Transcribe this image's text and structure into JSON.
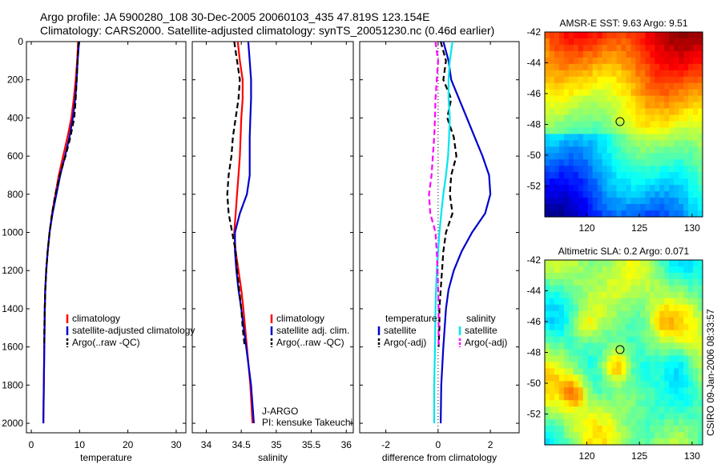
{
  "header": {
    "line1": "Argo profile: JA 5900280_108 30-Dec-2005 20060103_435 47.819S 123.154E",
    "line2": "Climatology: CARS2000. Satellite-adjusted climatology: synTS_20051230.nc (0.46d earlier)"
  },
  "colors": {
    "climatology": "#ff0000",
    "satellite_adjusted": "#0000cc",
    "argo": "#000000",
    "salinity_satellite": "#00e5ee",
    "salinity_argo": "#ff00ff"
  },
  "credit": "CSIRO 09-Jan-2006 08:33:57",
  "float_info": [
    "J-ARGO",
    "PI: kensuke Takeuchi"
  ],
  "chart_data": [
    {
      "type": "line",
      "xlabel": "temperature",
      "ylabel": "",
      "xlim": [
        -1,
        32
      ],
      "ylim": [
        2050,
        0
      ],
      "xticks": [
        "0",
        "10",
        "20",
        "30"
      ],
      "yticks": [
        "0",
        "200",
        "400",
        "600",
        "800",
        "1000",
        "1200",
        "1400",
        "1600",
        "1800",
        "2000"
      ],
      "legend": [
        "climatology",
        "satellite-adjusted climatology",
        "Argo(..raw -QC)"
      ],
      "series": [
        {
          "name": "climatology",
          "color": "#ff0000",
          "style": "solid",
          "depth": [
            0,
            100,
            200,
            300,
            400,
            500,
            600,
            700,
            800,
            900,
            1000,
            1100,
            1200,
            1300,
            1400,
            1600,
            1800,
            2000
          ],
          "values": [
            9.7,
            9.5,
            9.2,
            8.8,
            8.3,
            7.5,
            6.6,
            5.7,
            5.0,
            4.3,
            3.8,
            3.4,
            3.1,
            2.9,
            2.8,
            2.7,
            2.6,
            2.5
          ]
        },
        {
          "name": "satellite-adjusted climatology",
          "color": "#0000cc",
          "style": "solid",
          "depth": [
            0,
            100,
            200,
            300,
            400,
            500,
            600,
            700,
            800,
            900,
            1000,
            1100,
            1200,
            1300,
            1400,
            1600,
            1800,
            2000
          ],
          "values": [
            9.9,
            9.6,
            9.4,
            9.1,
            8.6,
            7.9,
            7.0,
            6.0,
            5.2,
            4.4,
            3.8,
            3.4,
            3.1,
            2.9,
            2.8,
            2.7,
            2.6,
            2.5
          ]
        },
        {
          "name": "Argo(..raw -QC)",
          "color": "#000000",
          "style": "dashed",
          "depth": [
            0,
            100,
            200,
            300,
            400,
            500,
            600,
            700,
            800,
            900,
            1000,
            1100,
            1200,
            1300,
            1400,
            1500,
            1600
          ],
          "values": [
            9.8,
            9.6,
            9.4,
            9.2,
            8.9,
            8.1,
            7.1,
            5.9,
            5.0,
            4.3,
            3.8,
            3.4,
            3.1,
            2.9,
            2.8,
            2.7,
            2.7
          ]
        }
      ]
    },
    {
      "type": "line",
      "xlabel": "salinity",
      "xlim": [
        33.8,
        36.1
      ],
      "ylim": [
        2050,
        0
      ],
      "xticks": [
        "34",
        "34.5",
        "35",
        "35.5",
        "36"
      ],
      "legend": [
        "climatology",
        "satellite adj. clim.",
        "Argo(..raw -QC)"
      ],
      "series": [
        {
          "name": "climatology",
          "color": "#ff0000",
          "style": "solid",
          "depth": [
            0,
            100,
            200,
            300,
            400,
            500,
            600,
            700,
            800,
            900,
            1000,
            1100,
            1200,
            1300,
            1400,
            1600,
            1800,
            2000
          ],
          "values": [
            34.45,
            34.48,
            34.52,
            34.52,
            34.5,
            34.49,
            34.48,
            34.46,
            34.44,
            34.42,
            34.4,
            34.42,
            34.46,
            34.5,
            34.53,
            34.58,
            34.63,
            34.66
          ]
        },
        {
          "name": "satellite adj. clim.",
          "color": "#0000cc",
          "style": "solid",
          "depth": [
            0,
            100,
            200,
            300,
            400,
            500,
            600,
            700,
            800,
            900,
            1000,
            1100,
            1200,
            1300,
            1400,
            1600,
            1800,
            2000
          ],
          "values": [
            34.6,
            34.62,
            34.64,
            34.64,
            34.63,
            34.62,
            34.62,
            34.62,
            34.58,
            34.48,
            34.41,
            34.41,
            34.43,
            34.46,
            34.5,
            34.57,
            34.64,
            34.68
          ]
        },
        {
          "name": "Argo(..raw -QC)",
          "color": "#000000",
          "style": "dashed",
          "depth": [
            0,
            100,
            200,
            300,
            400,
            500,
            600,
            700,
            800,
            900,
            1000,
            1100,
            1200,
            1300,
            1400,
            1500,
            1600
          ],
          "values": [
            34.4,
            34.44,
            34.48,
            34.46,
            34.42,
            34.38,
            34.36,
            34.32,
            34.3,
            34.32,
            34.37,
            34.42,
            34.44,
            34.47,
            34.5,
            34.52,
            34.55
          ]
        }
      ]
    },
    {
      "type": "line",
      "xlabel": "difference from climatology",
      "xlim": [
        -3,
        3.1
      ],
      "ylim": [
        2050,
        0
      ],
      "xticks": [
        "-2",
        "0",
        "2"
      ],
      "legend_groups": [
        {
          "title": "temperature",
          "items": [
            "satellite",
            "Argo(-adj)"
          ]
        },
        {
          "title": "salinity",
          "items": [
            "satellite",
            "Argo(-adj)"
          ]
        }
      ],
      "series": [
        {
          "name": "temperature satellite",
          "color": "#0000cc",
          "style": "solid",
          "depth": [
            0,
            100,
            200,
            300,
            400,
            500,
            600,
            700,
            800,
            900,
            1000,
            1100,
            1200,
            1300,
            1400,
            1600,
            1800,
            2000
          ],
          "values": [
            0.2,
            0.4,
            0.5,
            0.8,
            1.1,
            1.4,
            1.7,
            1.95,
            2.0,
            1.8,
            1.3,
            0.9,
            0.6,
            0.4,
            0.3,
            0.2,
            0.12,
            0.1
          ]
        },
        {
          "name": "temperature Argo(-adj)",
          "color": "#000000",
          "style": "dashed",
          "depth": [
            0,
            100,
            200,
            300,
            400,
            500,
            600,
            700,
            800,
            900,
            1000,
            1100,
            1200,
            1300,
            1400,
            1500,
            1600
          ],
          "values": [
            0.1,
            0.3,
            0.2,
            0.5,
            0.35,
            0.6,
            0.7,
            0.5,
            0.45,
            0.55,
            0.3,
            0.2,
            0.15,
            0.1,
            0.05,
            0.05,
            0.02
          ]
        },
        {
          "name": "salinity satellite",
          "color": "#00e5ee",
          "style": "solid",
          "depth": [
            0,
            100,
            200,
            300,
            400,
            500,
            600,
            700,
            800,
            900,
            1000,
            1100,
            1200,
            1300,
            1400,
            1600,
            1800,
            2000
          ],
          "values": [
            0.55,
            0.45,
            0.4,
            0.4,
            0.45,
            0.42,
            0.38,
            0.3,
            0.2,
            0.12,
            0.05,
            0.0,
            -0.05,
            -0.08,
            -0.1,
            -0.12,
            -0.15,
            -0.15
          ]
        },
        {
          "name": "salinity Argo(-adj)",
          "color": "#ff00ff",
          "style": "dashed",
          "depth": [
            0,
            100,
            200,
            300,
            400,
            500,
            600,
            700,
            800,
            900,
            1000,
            1100,
            1200,
            1300,
            1400,
            1500,
            1600
          ],
          "values": [
            -0.1,
            0.0,
            -0.05,
            -0.1,
            -0.12,
            -0.15,
            -0.2,
            -0.25,
            -0.35,
            -0.3,
            -0.1,
            -0.05,
            -0.02,
            0.0,
            0.02,
            0.02,
            0.02
          ]
        }
      ]
    },
    {
      "type": "heatmap",
      "title": "AMSR-E SST: 9.63 Argo: 9.51",
      "xlim": [
        116,
        131
      ],
      "ylim": [
        -54,
        -42
      ],
      "xticks": [
        "120",
        "125",
        "130"
      ],
      "yticks": [
        "-42",
        "-44",
        "-46",
        "-48",
        "-50",
        "-52"
      ],
      "marker": {
        "lon": 123.154,
        "lat": -47.819
      }
    },
    {
      "type": "heatmap",
      "title": "Altimetric SLA: 0.2 Argo: 0.071",
      "xlim": [
        116,
        131
      ],
      "ylim": [
        -54,
        -42
      ],
      "xticks": [
        "120",
        "125",
        "130"
      ],
      "yticks": [
        "-42",
        "-44",
        "-46",
        "-48",
        "-50",
        "-52"
      ],
      "marker": {
        "lon": 123.154,
        "lat": -47.819
      }
    }
  ]
}
